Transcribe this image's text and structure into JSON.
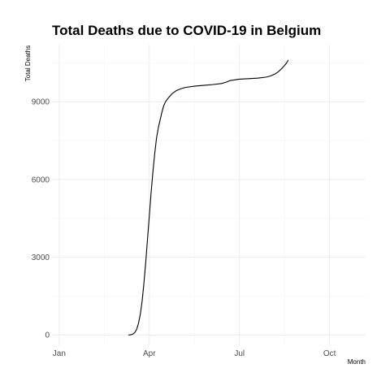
{
  "chart_data": {
    "type": "line",
    "title": "Total Deaths due to COVID-19 in Belgium",
    "xlabel": "Month",
    "ylabel": "Total Deaths",
    "x_ticks": [
      {
        "label": "Jan",
        "day": 0
      },
      {
        "label": "Apr",
        "day": 100
      },
      {
        "label": "Jul",
        "day": 200
      },
      {
        "label": "Oct",
        "day": 300
      }
    ],
    "y_ticks": [
      0,
      3000,
      6000,
      9000
    ],
    "xlim": [
      -8,
      340
    ],
    "ylim": [
      -400,
      11200
    ],
    "grid": true,
    "series": [
      {
        "name": "Total Deaths",
        "points": [
          [
            77,
            0
          ],
          [
            80,
            10
          ],
          [
            82,
            40
          ],
          [
            84,
            100
          ],
          [
            86,
            220
          ],
          [
            88,
            450
          ],
          [
            90,
            800
          ],
          [
            92,
            1300
          ],
          [
            94,
            2000
          ],
          [
            96,
            2800
          ],
          [
            98,
            3700
          ],
          [
            100,
            4600
          ],
          [
            102,
            5500
          ],
          [
            104,
            6300
          ],
          [
            106,
            7000
          ],
          [
            108,
            7600
          ],
          [
            110,
            8000
          ],
          [
            112,
            8300
          ],
          [
            114,
            8600
          ],
          [
            116,
            8850
          ],
          [
            118,
            9000
          ],
          [
            120,
            9100
          ],
          [
            125,
            9300
          ],
          [
            130,
            9430
          ],
          [
            135,
            9500
          ],
          [
            140,
            9550
          ],
          [
            150,
            9600
          ],
          [
            160,
            9630
          ],
          [
            170,
            9660
          ],
          [
            180,
            9700
          ],
          [
            185,
            9750
          ],
          [
            190,
            9820
          ],
          [
            200,
            9870
          ],
          [
            210,
            9890
          ],
          [
            220,
            9910
          ],
          [
            230,
            9950
          ],
          [
            235,
            10000
          ],
          [
            240,
            10080
          ],
          [
            244,
            10180
          ],
          [
            248,
            10320
          ],
          [
            252,
            10480
          ],
          [
            254,
            10600
          ]
        ]
      }
    ]
  }
}
